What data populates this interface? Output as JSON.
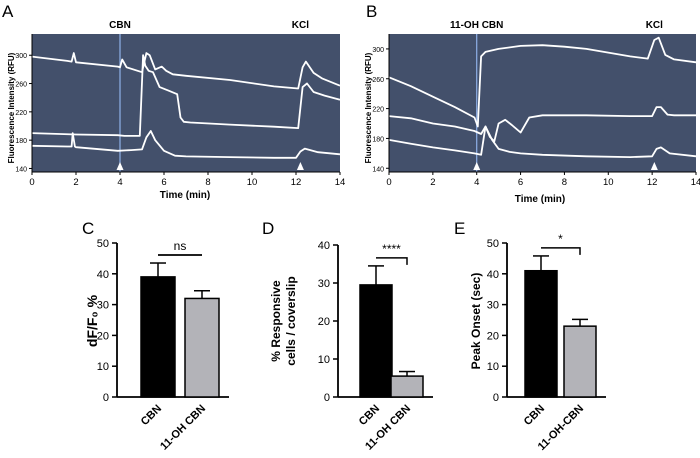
{
  "colors": {
    "trace_bg": "#43506b",
    "trace_line": "#ffffff",
    "marker_line": "#8fb0e8",
    "bar_cbn": "#000000",
    "bar_ohcbn": "#b3b3b8",
    "axis": "#000000"
  },
  "panel_labels": [
    "A",
    "B",
    "C",
    "D",
    "E"
  ],
  "chart_data": [
    {
      "id": "A",
      "type": "line",
      "ylabel": "Fluorescence Intensity (RFU)",
      "xlabel": "Time (min)",
      "xlim": [
        0,
        14
      ],
      "ylim": [
        135,
        330
      ],
      "xticks": [
        0,
        2,
        4,
        6,
        8,
        10,
        12,
        14
      ],
      "yticks": [
        140,
        180,
        220,
        260,
        300
      ],
      "events": [
        {
          "label": "CBN",
          "x": 4
        },
        {
          "label": "KCl",
          "x": 12.2
        }
      ],
      "series": [
        {
          "x": [
            0,
            1.6,
            1.8,
            1.9,
            2,
            3.9,
            4,
            4.1,
            4.3,
            5,
            5.2,
            5.35,
            5.6,
            5.9,
            6.1,
            6.4,
            7,
            9,
            11,
            12.1,
            12.3,
            12.45,
            12.8,
            13.2,
            14
          ],
          "values": [
            298,
            292,
            291,
            303,
            290,
            284,
            283,
            294,
            283,
            276,
            303,
            300,
            280,
            284,
            278,
            273,
            271,
            265,
            256,
            253,
            283,
            291,
            275,
            267,
            257
          ]
        },
        {
          "x": [
            0,
            2,
            3.9,
            4.2,
            4.9,
            5.05,
            5.15,
            5.3,
            5.5,
            5.8,
            6.2,
            6.6,
            6.75,
            6.9,
            7.2,
            9,
            11,
            12.1,
            12.3,
            12.5,
            12.8,
            13.3,
            14
          ],
          "values": [
            190,
            188,
            187,
            186,
            186,
            300,
            285,
            278,
            276,
            255,
            250,
            245,
            212,
            206,
            205,
            202,
            199,
            197,
            255,
            260,
            248,
            243,
            237
          ]
        },
        {
          "x": [
            0,
            1.6,
            1.8,
            1.85,
            1.95,
            2,
            3.9,
            4.5,
            5,
            5.2,
            5.4,
            5.6,
            6,
            6.5,
            7,
            9,
            11,
            12,
            12.2,
            12.4,
            13,
            14
          ],
          "values": [
            172,
            171,
            171,
            190,
            171,
            170,
            165,
            166,
            167,
            184,
            193,
            180,
            165,
            158,
            157,
            156,
            155,
            155,
            164,
            168,
            163,
            160
          ]
        }
      ]
    },
    {
      "id": "B",
      "type": "line",
      "ylabel": "Fluorescence Intensity (RFU)",
      "xlabel": "Time (min)",
      "xlim": [
        0,
        14
      ],
      "ylim": [
        135,
        320
      ],
      "xticks": [
        0,
        2,
        4,
        6,
        8,
        10,
        12,
        14
      ],
      "yticks": [
        140,
        180,
        220,
        260,
        300
      ],
      "events": [
        {
          "label": "11-OH CBN",
          "x": 4
        },
        {
          "label": "KCl",
          "x": 12.1
        }
      ],
      "series": [
        {
          "x": [
            0,
            1,
            2,
            3,
            3.9,
            4.05,
            4.2,
            4.4,
            5,
            6,
            7,
            8,
            9,
            10,
            11,
            11.8,
            12.1,
            12.3,
            12.6,
            13,
            14
          ],
          "values": [
            262,
            250,
            236,
            222,
            208,
            196,
            290,
            296,
            300,
            304,
            305,
            303,
            300,
            295,
            290,
            287,
            312,
            315,
            292,
            286,
            282
          ]
        },
        {
          "x": [
            0,
            1,
            2,
            3,
            3.9,
            4.2,
            4.4,
            4.6,
            4.8,
            5,
            5.3,
            5.6,
            6,
            6.4,
            7,
            9,
            11,
            12,
            12.2,
            12.4,
            12.7,
            13,
            14
          ],
          "values": [
            210,
            207,
            200,
            196,
            190,
            186,
            196,
            182,
            176,
            200,
            205,
            198,
            188,
            208,
            211,
            211,
            210,
            210,
            222,
            222,
            212,
            211,
            211
          ]
        },
        {
          "x": [
            0,
            1,
            2,
            3,
            3.9,
            4.2,
            4.4,
            4.7,
            5,
            5.5,
            6,
            7,
            9,
            11,
            12,
            12.2,
            12.4,
            12.8,
            14
          ],
          "values": [
            178,
            173,
            168,
            164,
            160,
            158,
            196,
            178,
            166,
            162,
            160,
            158,
            156,
            155,
            156,
            166,
            168,
            160,
            156
          ]
        }
      ]
    },
    {
      "id": "C",
      "type": "bar",
      "categories": [
        "CBN",
        "11-OH CBN"
      ],
      "values": [
        39,
        32
      ],
      "errors": [
        4.5,
        2.5
      ],
      "ylabel": "dF/F₀ %",
      "ylim": [
        0,
        50
      ],
      "yticks": [
        0,
        10,
        20,
        30,
        40,
        50
      ],
      "significance": "ns"
    },
    {
      "id": "D",
      "type": "bar",
      "categories": [
        "CBN",
        "11-OH CBN"
      ],
      "values": [
        29.5,
        5.5
      ],
      "errors": [
        5,
        1.2
      ],
      "ylabel_lines": [
        "% Responsive",
        "cells / coverslip"
      ],
      "ylim": [
        0,
        40
      ],
      "yticks": [
        0,
        10,
        20,
        30,
        40
      ],
      "significance": "****"
    },
    {
      "id": "E",
      "type": "bar",
      "categories": [
        "CBN",
        "11-OH-CBN"
      ],
      "values": [
        41,
        23
      ],
      "errors": [
        4.8,
        2.2
      ],
      "ylabel": "Peak Onset (sec)",
      "ylim": [
        0,
        50
      ],
      "yticks": [
        0,
        10,
        20,
        30,
        40,
        50
      ],
      "significance": "*"
    }
  ]
}
